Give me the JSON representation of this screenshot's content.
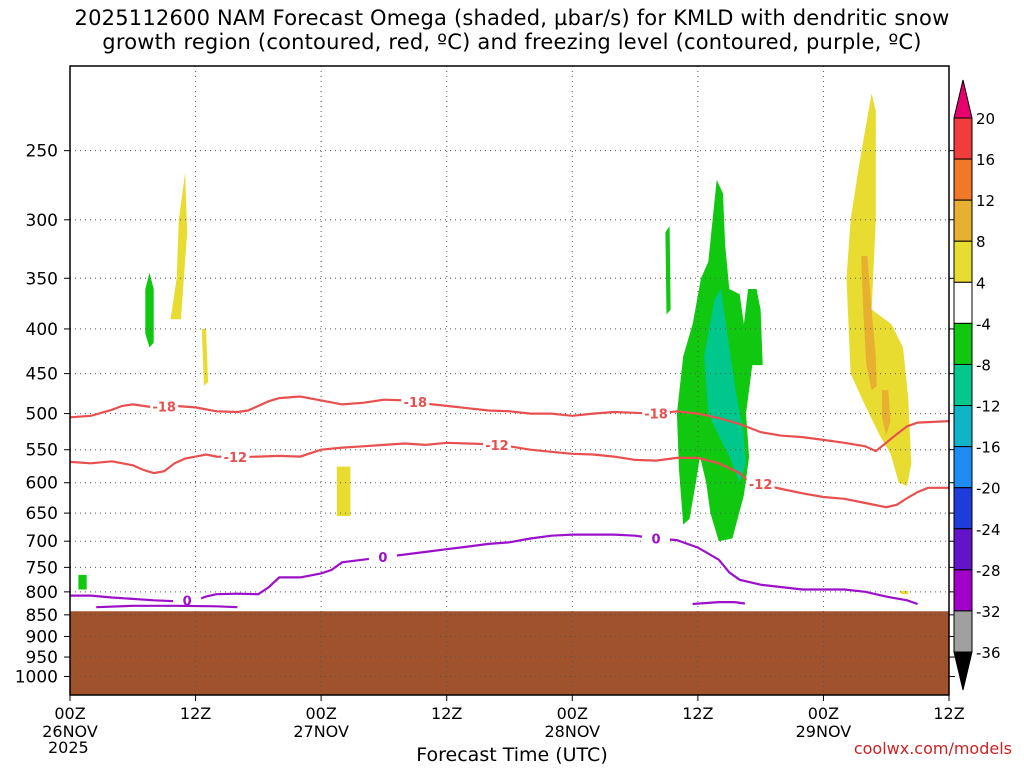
{
  "title_line1": "2025112600 NAM Forecast Omega (shaded, µbar/s) for KMLD with dendritic snow",
  "title_line2": "growth region (contoured, red, ºC) and freezing level (contoured, purple, ºC)",
  "credit": "coolwx.com/models",
  "chart_data": {
    "type": "heatmap",
    "title": "2025112600 NAM Forecast Omega (shaded, µbar/s) for KMLD with dendritic snow growth region (contoured, red, ºC) and freezing level (contoured, purple, ºC)",
    "xlabel": "Forecast Time (UTC)",
    "ylabel": "",
    "year_label": "2025",
    "xlim_hours": [
      0,
      84
    ],
    "ylim_hpa": [
      1050,
      200
    ],
    "y_scale": "log-pressure",
    "grid": true,
    "x_ticks": [
      {
        "hour": 0,
        "line1": "00Z",
        "line2": "26NOV"
      },
      {
        "hour": 12,
        "line1": "12Z",
        "line2": ""
      },
      {
        "hour": 24,
        "line1": "00Z",
        "line2": "27NOV"
      },
      {
        "hour": 36,
        "line1": "12Z",
        "line2": ""
      },
      {
        "hour": 48,
        "line1": "00Z",
        "line2": "28NOV"
      },
      {
        "hour": 60,
        "line1": "12Z",
        "line2": ""
      },
      {
        "hour": 72,
        "line1": "00Z",
        "line2": "29NOV"
      },
      {
        "hour": 84,
        "line1": "12Z",
        "line2": ""
      }
    ],
    "y_ticks": [
      250,
      300,
      350,
      400,
      450,
      500,
      550,
      600,
      650,
      700,
      750,
      800,
      850,
      900,
      950,
      1000
    ],
    "colorbar": {
      "labels": [
        "20",
        "16",
        "12",
        "8",
        "4",
        "-4",
        "-8",
        "-12",
        "-16",
        "-20",
        "-24",
        "-28",
        "-32",
        "-36"
      ],
      "colors": [
        "#e8006e",
        "#f03c3c",
        "#f07828",
        "#e8b030",
        "#e8dc30",
        "#ffffff",
        "#10c810",
        "#00c88c",
        "#10b4c8",
        "#1e8cf0",
        "#1e3cdc",
        "#6414c8",
        "#a000c8",
        "#a0a0a0",
        "#000000"
      ]
    },
    "terrain": {
      "color": "#a0522d",
      "surface_hpa": 842
    },
    "omega_regions": [
      {
        "level": "4",
        "color": "#e8dc30",
        "points": [
          [
            9.6,
            390
          ],
          [
            10.2,
            350
          ],
          [
            10.4,
            300
          ],
          [
            11.0,
            265
          ],
          [
            11.2,
            310
          ],
          [
            10.6,
            390
          ]
        ]
      },
      {
        "level": "4",
        "color": "#e8dc30",
        "points": [
          [
            12.6,
            400
          ],
          [
            13.0,
            400
          ],
          [
            13.2,
            460
          ],
          [
            12.8,
            465
          ]
        ]
      },
      {
        "level": "-4",
        "color": "#10c810",
        "points": [
          [
            7.2,
            360
          ],
          [
            7.6,
            345
          ],
          [
            8.0,
            360
          ],
          [
            8.0,
            415
          ],
          [
            7.6,
            420
          ],
          [
            7.2,
            405
          ]
        ]
      },
      {
        "level": "4",
        "color": "#e8dc30",
        "points": [
          [
            25.5,
            575
          ],
          [
            26.8,
            575
          ],
          [
            26.8,
            655
          ],
          [
            25.5,
            655
          ]
        ]
      },
      {
        "level": "-4",
        "color": "#10c810",
        "points": [
          [
            0.8,
            765
          ],
          [
            1.6,
            765
          ],
          [
            1.6,
            795
          ],
          [
            0.8,
            795
          ]
        ]
      },
      {
        "level": "-4",
        "color": "#10c810",
        "points": [
          [
            56.9,
            310
          ],
          [
            57.3,
            305
          ],
          [
            57.4,
            380
          ],
          [
            57.0,
            385
          ]
        ]
      },
      {
        "level": "-4",
        "color": "#10c810",
        "points": [
          [
            58.0,
            500
          ],
          [
            58.6,
            430
          ],
          [
            59.5,
            395
          ],
          [
            60.3,
            350
          ],
          [
            61.0,
            335
          ],
          [
            61.8,
            270
          ],
          [
            62.4,
            280
          ],
          [
            62.6,
            320
          ],
          [
            63.0,
            360
          ],
          [
            64.0,
            365
          ],
          [
            64.4,
            395
          ],
          [
            64.8,
            360
          ],
          [
            65.6,
            360
          ],
          [
            66.0,
            380
          ],
          [
            66.2,
            440
          ],
          [
            65.2,
            440
          ],
          [
            64.6,
            500
          ],
          [
            64.9,
            560
          ],
          [
            64.4,
            620
          ],
          [
            63.3,
            695
          ],
          [
            62.0,
            700
          ],
          [
            61.2,
            650
          ],
          [
            60.8,
            600
          ],
          [
            60.2,
            560
          ],
          [
            59.8,
            600
          ],
          [
            59.2,
            660
          ],
          [
            58.6,
            670
          ],
          [
            58.2,
            580
          ]
        ]
      },
      {
        "level": "-8",
        "color": "#00c88c",
        "points": [
          [
            60.6,
            430
          ],
          [
            61.6,
            370
          ],
          [
            62.2,
            360
          ],
          [
            63.0,
            420
          ],
          [
            63.6,
            470
          ],
          [
            64.3,
            520
          ],
          [
            64.6,
            570
          ],
          [
            64.0,
            600
          ],
          [
            63.0,
            560
          ],
          [
            62.0,
            530
          ],
          [
            61.0,
            500
          ]
        ]
      },
      {
        "level": "4",
        "color": "#e8dc30",
        "points": [
          [
            74.6,
            450
          ],
          [
            74.2,
            350
          ],
          [
            74.6,
            300
          ],
          [
            75.4,
            260
          ],
          [
            76.6,
            215
          ],
          [
            77.0,
            225
          ],
          [
            77.0,
            300
          ],
          [
            76.6,
            380
          ],
          [
            78.5,
            395
          ],
          [
            79.6,
            420
          ],
          [
            80.1,
            480
          ],
          [
            80.4,
            570
          ],
          [
            80.0,
            605
          ],
          [
            79.2,
            600
          ],
          [
            78.4,
            555
          ],
          [
            77.4,
            530
          ],
          [
            76.0,
            490
          ]
        ]
      },
      {
        "level": "8",
        "color": "#e8b030",
        "points": [
          [
            75.6,
            330
          ],
          [
            76.2,
            330
          ],
          [
            76.6,
            380
          ],
          [
            77.0,
            430
          ],
          [
            77.1,
            465
          ],
          [
            76.6,
            470
          ],
          [
            76.1,
            440
          ],
          [
            75.8,
            380
          ]
        ]
      },
      {
        "level": "8",
        "color": "#e8b030",
        "points": [
          [
            77.6,
            470
          ],
          [
            78.2,
            470
          ],
          [
            78.4,
            510
          ],
          [
            78.0,
            530
          ],
          [
            77.6,
            505
          ]
        ]
      },
      {
        "level": "4",
        "color": "#e8dc30",
        "points": [
          [
            79.4,
            798
          ],
          [
            80.1,
            798
          ],
          [
            80.1,
            805
          ],
          [
            79.4,
            805
          ]
        ]
      }
    ],
    "dgz_contours": [
      {
        "label": "-18",
        "color": "#e85050",
        "label_at_hour": [
          9.0,
          33.0,
          56.0
        ],
        "points": [
          [
            0,
            505
          ],
          [
            2,
            503
          ],
          [
            4,
            495
          ],
          [
            5,
            490
          ],
          [
            6,
            488
          ],
          [
            8,
            492
          ],
          [
            10,
            490
          ],
          [
            12,
            492
          ],
          [
            14,
            497
          ],
          [
            16,
            498
          ],
          [
            17,
            496
          ],
          [
            18,
            490
          ],
          [
            19,
            484
          ],
          [
            20,
            480
          ],
          [
            22,
            478
          ],
          [
            24,
            483
          ],
          [
            26,
            488
          ],
          [
            28,
            486
          ],
          [
            30,
            482
          ],
          [
            32,
            483
          ],
          [
            34,
            487
          ],
          [
            36,
            490
          ],
          [
            38,
            493
          ],
          [
            40,
            496
          ],
          [
            42,
            497
          ],
          [
            44,
            500
          ],
          [
            46,
            500
          ],
          [
            48,
            503
          ],
          [
            50,
            500
          ],
          [
            52,
            498
          ],
          [
            54,
            499
          ],
          [
            56,
            500
          ],
          [
            58,
            497
          ],
          [
            60,
            500
          ],
          [
            62,
            506
          ],
          [
            64,
            514
          ],
          [
            66,
            525
          ],
          [
            68,
            530
          ],
          [
            70,
            532
          ],
          [
            72,
            536
          ],
          [
            74,
            540
          ],
          [
            76,
            545
          ],
          [
            77,
            552
          ],
          [
            78,
            540
          ],
          [
            79,
            528
          ],
          [
            80,
            517
          ],
          [
            81,
            512
          ],
          [
            84,
            510
          ]
        ]
      },
      {
        "label": "-12",
        "color": "#e85050",
        "label_at_hour": [
          15.8,
          40.8,
          66.0
        ],
        "points": [
          [
            0,
            568
          ],
          [
            2,
            570
          ],
          [
            4,
            567
          ],
          [
            6,
            573
          ],
          [
            7,
            580
          ],
          [
            8,
            585
          ],
          [
            9,
            582
          ],
          [
            10,
            570
          ],
          [
            11,
            563
          ],
          [
            12,
            560
          ],
          [
            13,
            557
          ],
          [
            14,
            560
          ],
          [
            16,
            561
          ],
          [
            18,
            560
          ],
          [
            20,
            559
          ],
          [
            22,
            560
          ],
          [
            24,
            550
          ],
          [
            26,
            547
          ],
          [
            28,
            545
          ],
          [
            30,
            543
          ],
          [
            32,
            541
          ],
          [
            34,
            543
          ],
          [
            36,
            540
          ],
          [
            38,
            541
          ],
          [
            40,
            542
          ],
          [
            42,
            545
          ],
          [
            44,
            550
          ],
          [
            46,
            553
          ],
          [
            48,
            556
          ],
          [
            50,
            557
          ],
          [
            52,
            560
          ],
          [
            54,
            565
          ],
          [
            56,
            566
          ],
          [
            58,
            562
          ],
          [
            60,
            562
          ],
          [
            62,
            570
          ],
          [
            64,
            585
          ],
          [
            65,
            600
          ],
          [
            66,
            602
          ],
          [
            68,
            610
          ],
          [
            70,
            617
          ],
          [
            72,
            623
          ],
          [
            74,
            626
          ],
          [
            76,
            633
          ],
          [
            78,
            640
          ],
          [
            79,
            636
          ],
          [
            80,
            625
          ],
          [
            81,
            615
          ],
          [
            82,
            608
          ],
          [
            84,
            608
          ]
        ]
      }
    ],
    "freezing_contours": [
      {
        "label": "0",
        "color": "#9b10c8",
        "label_at_hour": [
          11.2,
          29.9,
          56.0
        ],
        "points": [
          [
            0,
            808
          ],
          [
            2,
            808
          ],
          [
            4,
            812
          ],
          [
            6,
            815
          ],
          [
            8,
            818
          ],
          [
            10,
            820
          ],
          [
            12,
            818
          ],
          [
            13,
            810
          ],
          [
            14,
            805
          ],
          [
            16,
            804
          ],
          [
            18,
            805
          ],
          [
            19,
            790
          ],
          [
            20,
            770
          ],
          [
            22,
            770
          ],
          [
            24,
            762
          ],
          [
            25,
            755
          ],
          [
            26,
            740
          ],
          [
            28,
            735
          ],
          [
            30,
            730
          ],
          [
            32,
            725
          ],
          [
            34,
            720
          ],
          [
            36,
            715
          ],
          [
            38,
            710
          ],
          [
            40,
            705
          ],
          [
            42,
            702
          ],
          [
            44,
            695
          ],
          [
            46,
            690
          ],
          [
            48,
            688
          ],
          [
            50,
            688
          ],
          [
            52,
            688
          ],
          [
            54,
            690
          ],
          [
            56,
            695
          ],
          [
            58,
            698
          ],
          [
            60,
            712
          ],
          [
            62,
            735
          ],
          [
            63,
            760
          ],
          [
            64,
            775
          ],
          [
            66,
            785
          ],
          [
            68,
            790
          ],
          [
            70,
            795
          ],
          [
            72,
            795
          ],
          [
            74,
            795
          ],
          [
            76,
            800
          ],
          [
            78,
            810
          ],
          [
            80,
            818
          ],
          [
            81,
            826
          ]
        ]
      },
      {
        "label": "",
        "color": "#9b10c8",
        "label_at_hour": [],
        "points": [
          [
            2.5,
            833
          ],
          [
            6,
            830
          ],
          [
            10,
            830
          ],
          [
            14,
            831
          ],
          [
            16,
            833
          ]
        ]
      },
      {
        "label": "",
        "color": "#9b10c8",
        "label_at_hour": [],
        "points": [
          [
            59.5,
            826
          ],
          [
            62,
            822
          ],
          [
            63.5,
            822
          ],
          [
            64.5,
            825
          ]
        ]
      }
    ]
  }
}
